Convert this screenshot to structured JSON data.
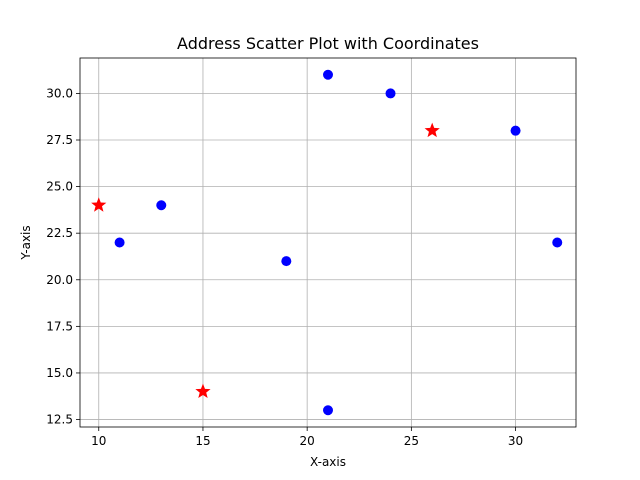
{
  "chart_data": {
    "type": "scatter",
    "title": "Address Scatter Plot with Coordinates",
    "xlabel": "X-axis",
    "ylabel": "Y-axis",
    "xlim": [
      9.1,
      32.9
    ],
    "ylim": [
      12.1,
      31.9
    ],
    "xticks": [
      10,
      15,
      20,
      25,
      30
    ],
    "yticks": [
      12.5,
      15.0,
      17.5,
      20.0,
      22.5,
      25.0,
      27.5,
      30.0
    ],
    "xtick_labels": [
      "10",
      "15",
      "20",
      "25",
      "30"
    ],
    "ytick_labels": [
      "12.5",
      "15.0",
      "17.5",
      "20.0",
      "22.5",
      "25.0",
      "27.5",
      "30.0"
    ],
    "grid": true,
    "series": [
      {
        "marker": "circle",
        "color": "#0000ff",
        "x": [
          11,
          13,
          19,
          21,
          21,
          24,
          30,
          32
        ],
        "y": [
          22,
          24,
          21,
          31,
          13,
          30,
          28,
          22
        ]
      },
      {
        "marker": "star",
        "color": "#ff0000",
        "x": [
          10,
          15,
          26
        ],
        "y": [
          24,
          14,
          28
        ]
      }
    ]
  }
}
